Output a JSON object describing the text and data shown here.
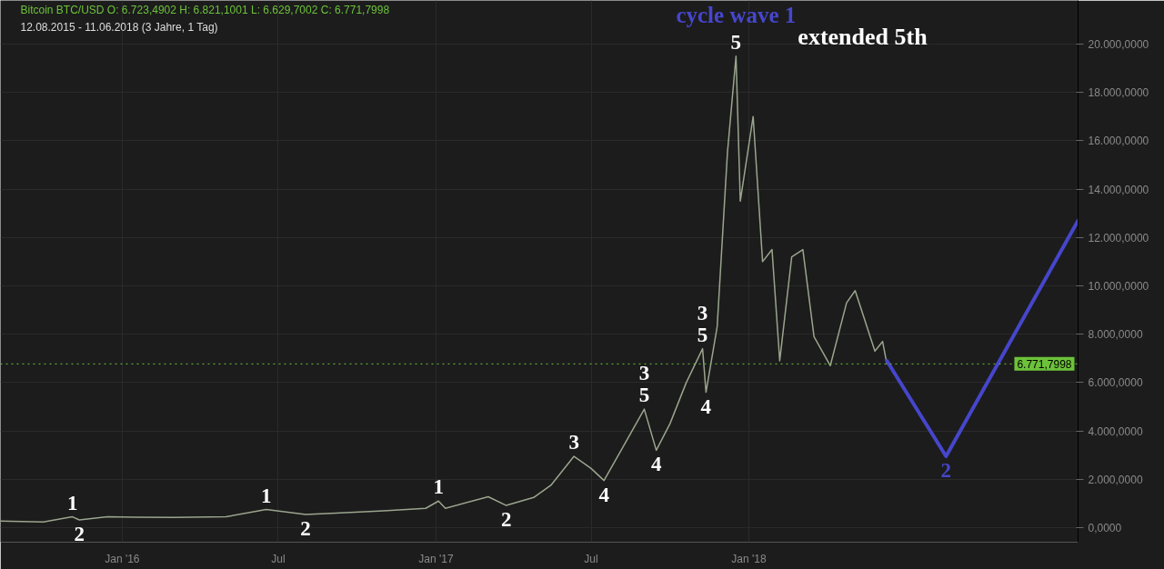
{
  "chart_data": {
    "type": "line",
    "title": "Bitcoin BTC/USD  O: 6.723,4902  H: 6.821,1001  L: 6.629,7002  C: 6.771,7998",
    "subtitle": "12.08.2015 - 11.06.2018   (3 Jahre, 1 Tag)",
    "xlim": [
      "2015-08-12",
      "2019-01-20"
    ],
    "xticks": [
      {
        "value": "2016-01-01",
        "label": "Jan '16"
      },
      {
        "value": "2016-07-01",
        "label": "Jul"
      },
      {
        "value": "2017-01-01",
        "label": "Jan '17"
      },
      {
        "value": "2017-07-01",
        "label": "Jul"
      },
      {
        "value": "2018-01-01",
        "label": "Jan '18"
      }
    ],
    "ylim": [
      -600,
      21800
    ],
    "yticks": [
      {
        "value": 0,
        "label": "0,0000"
      },
      {
        "value": 2000,
        "label": "2.000,0000"
      },
      {
        "value": 4000,
        "label": "4.000,0000"
      },
      {
        "value": 6000,
        "label": "6.000,0000"
      },
      {
        "value": 8000,
        "label": "8.000,0000"
      },
      {
        "value": 10000,
        "label": "10.000,0000"
      },
      {
        "value": 12000,
        "label": "12.000,0000"
      },
      {
        "value": 14000,
        "label": "14.000,0000"
      },
      {
        "value": 16000,
        "label": "16.000,0000"
      },
      {
        "value": 18000,
        "label": "18.000,0000"
      },
      {
        "value": 20000,
        "label": "20.000,0000"
      }
    ],
    "grid": true,
    "series": [
      {
        "color": "#9aa58e",
        "x": [
          "2015-08-12",
          "2015-10-01",
          "2015-11-04",
          "2015-11-12",
          "2015-12-15",
          "2016-01-15",
          "2016-03-01",
          "2016-05-01",
          "2016-06-17",
          "2016-08-02",
          "2016-09-01",
          "2016-11-01",
          "2016-12-20",
          "2017-01-04",
          "2017-01-12",
          "2017-03-03",
          "2017-03-24",
          "2017-04-25",
          "2017-05-15",
          "2017-06-11",
          "2017-07-01",
          "2017-07-16",
          "2017-08-05",
          "2017-09-01",
          "2017-09-15",
          "2017-10-01",
          "2017-10-20",
          "2017-11-08",
          "2017-11-12",
          "2017-11-25",
          "2017-12-07",
          "2017-12-17",
          "2017-12-22",
          "2018-01-06",
          "2018-01-17",
          "2018-01-28",
          "2018-02-06",
          "2018-02-20",
          "2018-03-05",
          "2018-03-18",
          "2018-04-06",
          "2018-04-25",
          "2018-05-05",
          "2018-05-28",
          "2018-06-06",
          "2018-06-11"
        ],
        "values": [
          270,
          240,
          450,
          320,
          450,
          430,
          420,
          450,
          750,
          550,
          590,
          700,
          800,
          1100,
          800,
          1280,
          920,
          1250,
          1750,
          2950,
          2450,
          1950,
          3200,
          4900,
          3200,
          4300,
          6000,
          7400,
          5600,
          8300,
          15500,
          19500,
          13500,
          17000,
          11000,
          11500,
          6900,
          11200,
          11500,
          7900,
          6700,
          9300,
          9800,
          7300,
          7700,
          6770
        ]
      },
      {
        "color": "#4646cc",
        "x": [
          "2018-06-11",
          "2018-08-19",
          "2019-01-20"
        ],
        "values": [
          6900,
          2950,
          12700
        ]
      }
    ],
    "ref_lines": [
      {
        "axis": "y",
        "value": 6771.7998,
        "label": "6.771,7998",
        "color": "#6cc23a",
        "line_style": "dotted"
      }
    ],
    "annotations": [
      {
        "text": "1",
        "x": "2015-11-04",
        "y": 450
      },
      {
        "text": "2",
        "x": "2015-11-12",
        "y": 320
      },
      {
        "text": "1",
        "x": "2016-06-17",
        "y": 750
      },
      {
        "text": "2",
        "x": "2016-08-02",
        "y": 550
      },
      {
        "text": "1",
        "x": "2017-01-04",
        "y": 1100
      },
      {
        "text": "2",
        "x": "2017-03-24",
        "y": 920
      },
      {
        "text": "3",
        "x": "2017-06-11",
        "y": 2950
      },
      {
        "text": "4",
        "x": "2017-07-16",
        "y": 1950
      },
      {
        "text": "5",
        "x": "2017-09-01",
        "y": 4900
      },
      {
        "text": "3",
        "x": "2017-09-01",
        "y": 4900
      },
      {
        "text": "4",
        "x": "2017-09-15",
        "y": 3200
      },
      {
        "text": "5",
        "x": "2017-11-08",
        "y": 7400
      },
      {
        "text": "3",
        "x": "2017-11-08",
        "y": 7400
      },
      {
        "text": "4",
        "x": "2017-11-12",
        "y": 5600
      },
      {
        "text": "5",
        "x": "2017-12-17",
        "y": 19500
      },
      {
        "text": "cycle wave 1",
        "x": "2017-12-17",
        "y": 19500
      },
      {
        "text": "2",
        "x": "2018-08-19",
        "y": 2950
      },
      "extended 5th"
    ]
  }
}
